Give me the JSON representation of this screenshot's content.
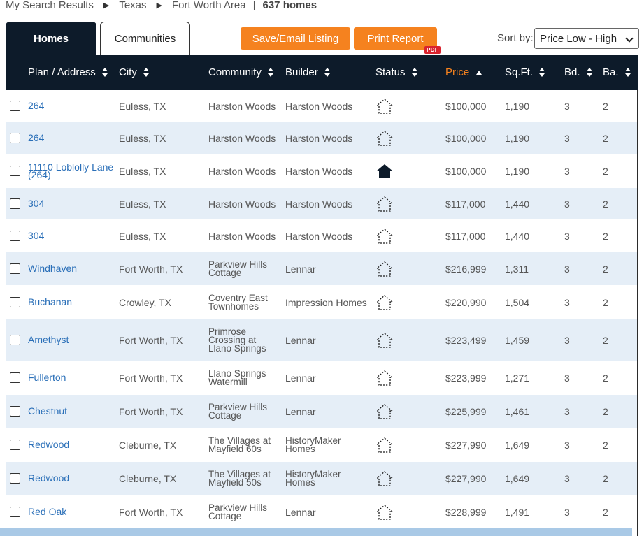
{
  "breadcrumb": {
    "items": [
      "My Search Results",
      "Texas",
      "Fort Worth Area"
    ],
    "count": "637 homes"
  },
  "tabs": {
    "homes": "Homes",
    "communities": "Communities"
  },
  "actions": {
    "save_email": "Save/Email Listing",
    "print_report": "Print Report",
    "pdf_badge": "PDF"
  },
  "sort": {
    "label": "Sort by:",
    "selected": "Price Low - High"
  },
  "columns": {
    "plan": "Plan / Address",
    "city": "City",
    "community": "Community",
    "builder": "Builder",
    "status": "Status",
    "price": "Price",
    "sqft": "Sq.Ft.",
    "bd": "Bd.",
    "ba": "Ba."
  },
  "status_icons": {
    "available": "house-outline-icon",
    "model": "house-solid-icon"
  },
  "colors": {
    "header_bg": "#0d1b2a",
    "accent": "#f5821f",
    "link": "#2a6fb8",
    "alt_row": "#e5eef7"
  },
  "rows": [
    {
      "plan": [
        "264"
      ],
      "city": "Euless, TX",
      "community": [
        "Harston Woods"
      ],
      "builder": [
        "Harston Woods"
      ],
      "status": "outline",
      "price": "$100,000",
      "sqft": "1,190",
      "bd": "3",
      "ba": "2"
    },
    {
      "plan": [
        "264"
      ],
      "city": "Euless, TX",
      "community": [
        "Harston Woods"
      ],
      "builder": [
        "Harston Woods"
      ],
      "status": "outline",
      "price": "$100,000",
      "sqft": "1,190",
      "bd": "3",
      "ba": "2"
    },
    {
      "plan": [
        "11110 Loblolly Lane",
        "(264)"
      ],
      "city": "Euless, TX",
      "community": [
        "Harston Woods"
      ],
      "builder": [
        "Harston Woods"
      ],
      "status": "solid",
      "price": "$100,000",
      "sqft": "1,190",
      "bd": "3",
      "ba": "2"
    },
    {
      "plan": [
        "304"
      ],
      "city": "Euless, TX",
      "community": [
        "Harston Woods"
      ],
      "builder": [
        "Harston Woods"
      ],
      "status": "outline",
      "price": "$117,000",
      "sqft": "1,440",
      "bd": "3",
      "ba": "2"
    },
    {
      "plan": [
        "304"
      ],
      "city": "Euless, TX",
      "community": [
        "Harston Woods"
      ],
      "builder": [
        "Harston Woods"
      ],
      "status": "outline",
      "price": "$117,000",
      "sqft": "1,440",
      "bd": "3",
      "ba": "2"
    },
    {
      "plan": [
        "Windhaven"
      ],
      "city": "Fort Worth, TX",
      "community": [
        "Parkview Hills",
        "Cottage"
      ],
      "builder": [
        "Lennar"
      ],
      "status": "outline",
      "price": "$216,999",
      "sqft": "1,311",
      "bd": "3",
      "ba": "2"
    },
    {
      "plan": [
        "Buchanan"
      ],
      "city": "Crowley, TX",
      "community": [
        "Coventry East",
        "Townhomes"
      ],
      "builder": [
        "Impression Homes"
      ],
      "status": "outline",
      "price": "$220,990",
      "sqft": "1,504",
      "bd": "3",
      "ba": "2"
    },
    {
      "plan": [
        "Amethyst"
      ],
      "city": "Fort Worth, TX",
      "community": [
        "Primrose",
        "Crossing at",
        "Llano Springs"
      ],
      "builder": [
        "Lennar"
      ],
      "status": "outline",
      "price": "$223,499",
      "sqft": "1,459",
      "bd": "3",
      "ba": "2"
    },
    {
      "plan": [
        "Fullerton"
      ],
      "city": "Fort Worth, TX",
      "community": [
        "Llano Springs",
        "Watermill"
      ],
      "builder": [
        "Lennar"
      ],
      "status": "outline",
      "price": "$223,999",
      "sqft": "1,271",
      "bd": "3",
      "ba": "2"
    },
    {
      "plan": [
        "Chestnut"
      ],
      "city": "Fort Worth, TX",
      "community": [
        "Parkview Hills",
        "Cottage"
      ],
      "builder": [
        "Lennar"
      ],
      "status": "outline",
      "price": "$225,999",
      "sqft": "1,461",
      "bd": "3",
      "ba": "2"
    },
    {
      "plan": [
        "Redwood"
      ],
      "city": "Cleburne, TX",
      "community": [
        "The Villages at",
        "Mayfield 60s"
      ],
      "builder": [
        "HistoryMaker",
        "Homes"
      ],
      "status": "outline",
      "price": "$227,990",
      "sqft": "1,649",
      "bd": "3",
      "ba": "2"
    },
    {
      "plan": [
        "Redwood"
      ],
      "city": "Cleburne, TX",
      "community": [
        "The Villages at",
        "Mayfield 50s"
      ],
      "builder": [
        "HistoryMaker",
        "Homes"
      ],
      "status": "outline",
      "price": "$227,990",
      "sqft": "1,649",
      "bd": "3",
      "ba": "2"
    },
    {
      "plan": [
        "Red Oak"
      ],
      "city": "Fort Worth, TX",
      "community": [
        "Parkview Hills",
        "Cottage"
      ],
      "builder": [
        "Lennar"
      ],
      "status": "outline",
      "price": "$228,999",
      "sqft": "1,491",
      "bd": "3",
      "ba": "2"
    }
  ]
}
